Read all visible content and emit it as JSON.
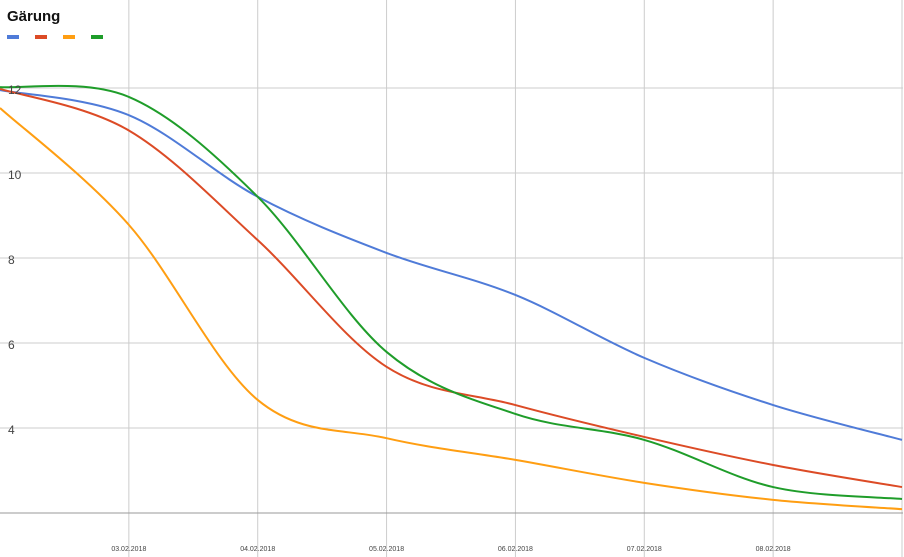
{
  "chart_data": {
    "type": "line",
    "title": "Gärung",
    "categories": [
      null,
      "03.02.2018",
      "04.02.2018",
      "05.02.2018",
      "06.02.2018",
      "07.02.2018",
      "08.02.2018",
      null
    ],
    "series": [
      {
        "color": "#4f7bd8",
        "values": [
          11.95,
          11.36,
          9.44,
          8.12,
          7.13,
          5.65,
          4.54,
          3.72
        ]
      },
      {
        "color": "#dc4b26",
        "values": [
          11.98,
          11.0,
          8.42,
          5.44,
          4.54,
          3.79,
          3.13,
          2.61
        ]
      },
      {
        "color": "#ff9e12",
        "values": [
          11.53,
          8.78,
          4.66,
          3.76,
          3.25,
          2.71,
          2.31,
          2.09
        ]
      },
      {
        "color": "#1f9d2a",
        "values": [
          12.02,
          11.79,
          9.44,
          5.79,
          4.33,
          3.72,
          2.61,
          2.33
        ]
      }
    ],
    "ylim": [
      2,
      14
    ],
    "yticks": [
      4,
      6,
      8,
      10,
      12
    ],
    "grid": true
  }
}
